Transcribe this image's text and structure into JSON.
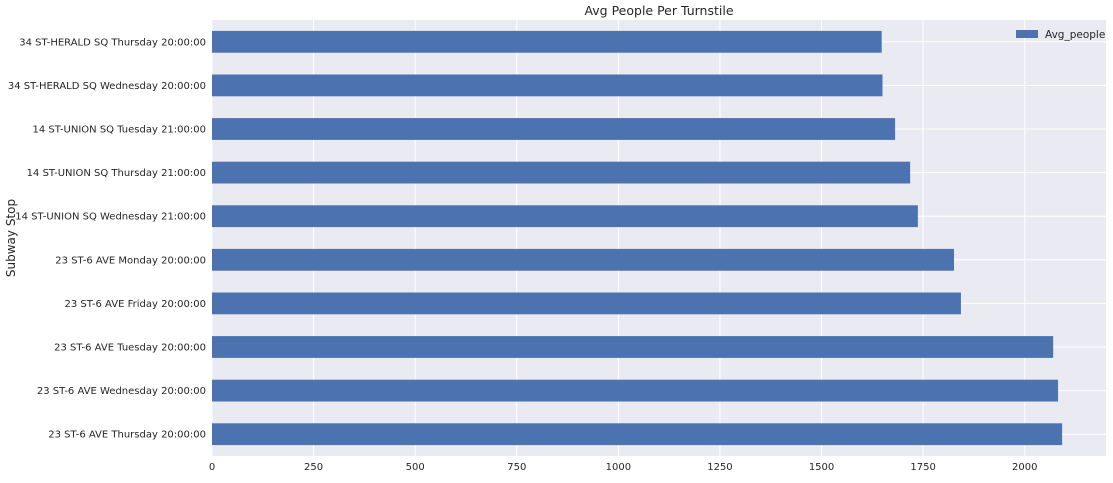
{
  "chart_data": {
    "type": "bar",
    "orientation": "horizontal",
    "title": "Avg People Per Turnstile",
    "xlabel": "",
    "ylabel": "Subway Stop",
    "xlim": [
      0,
      2200
    ],
    "xticks": [
      0,
      250,
      500,
      750,
      1000,
      1250,
      1500,
      1750,
      2000
    ],
    "grid": true,
    "legend_position": "top-right",
    "categories": [
      "34 ST-HERALD SQ Thursday 20:00:00",
      "34 ST-HERALD SQ Wednesday 20:00:00",
      "14 ST-UNION SQ Tuesday 21:00:00",
      "14 ST-UNION SQ Thursday 21:00:00",
      "14 ST-UNION SQ Wednesday 21:00:00",
      "23 ST-6 AVE Monday 20:00:00",
      "23 ST-6 AVE Friday 20:00:00",
      "23 ST-6 AVE Tuesday 20:00:00",
      "23 ST-6 AVE Wednesday 20:00:00",
      "23 ST-6 AVE Thursday 20:00:00"
    ],
    "series": [
      {
        "name": "Avg_people",
        "color": "#4c72b0",
        "values": [
          1648,
          1650,
          1681,
          1718,
          1737,
          1826,
          1843,
          2070,
          2082,
          2092
        ]
      }
    ]
  },
  "colors": {
    "plot_background": "#eaeaf2",
    "grid": "#ffffff",
    "text": "#262626"
  }
}
